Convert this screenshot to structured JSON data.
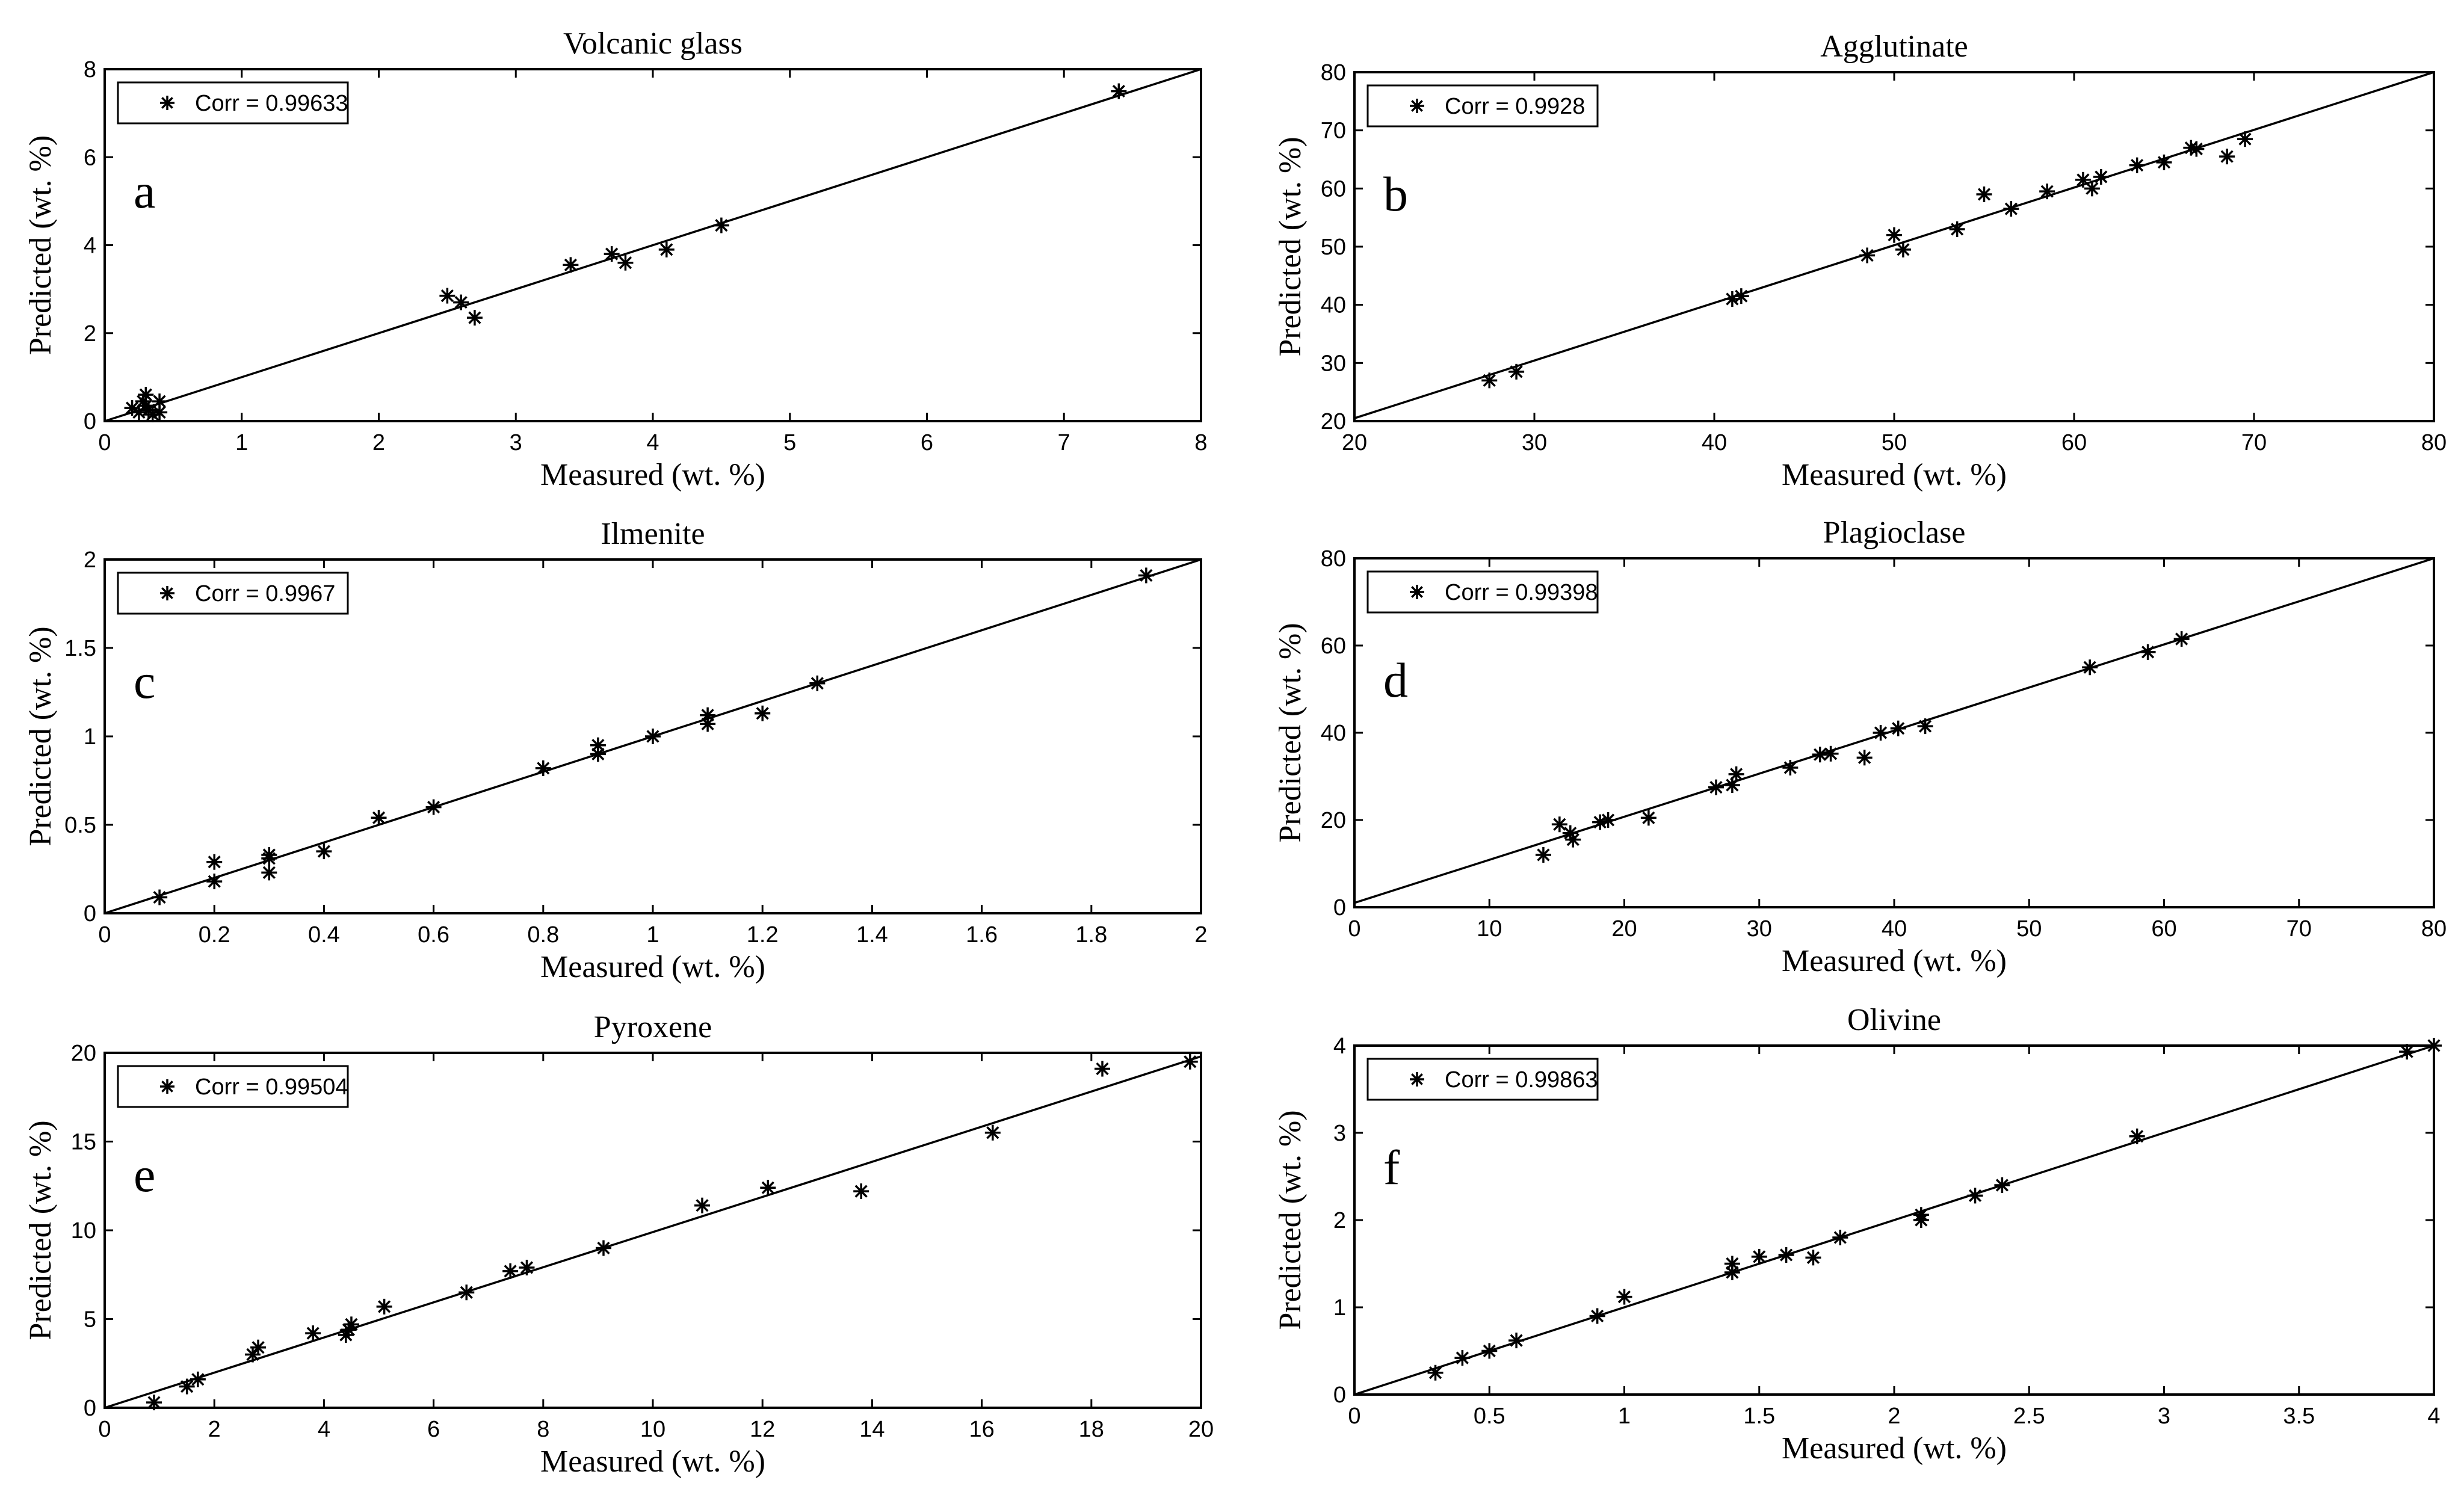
{
  "figure": {
    "colors": {
      "axes": "#000000",
      "background": "#ffffff",
      "markers": "#000000",
      "line": "#000000"
    },
    "marker": "asterisk"
  },
  "chart_data": [
    {
      "id": "volcanic-glass",
      "type": "scatter",
      "panel_label": "a",
      "title": "Volcanic glass",
      "xlabel": "Measured (wt. %)",
      "ylabel": "Predicted (wt. %)",
      "xlim": [
        0,
        8
      ],
      "ylim": [
        0,
        8
      ],
      "xticks": [
        "0",
        "1",
        "2",
        "3",
        "4",
        "5",
        "6",
        "7",
        "8"
      ],
      "yticks": [
        "0",
        "2",
        "4",
        "6",
        "8"
      ],
      "legend": "Corr = 0.99633",
      "legend_position": "top-left",
      "fit_line": [
        [
          0,
          0
        ],
        [
          8,
          8
        ]
      ],
      "points": [
        [
          0.2,
          0.3
        ],
        [
          0.25,
          0.2
        ],
        [
          0.28,
          0.45
        ],
        [
          0.3,
          0.35
        ],
        [
          0.3,
          0.6
        ],
        [
          0.32,
          0.25
        ],
        [
          0.35,
          0.15
        ],
        [
          0.4,
          0.2
        ],
        [
          0.4,
          0.45
        ],
        [
          2.5,
          2.85
        ],
        [
          2.6,
          2.7
        ],
        [
          2.7,
          2.35
        ],
        [
          3.4,
          3.55
        ],
        [
          3.7,
          3.8
        ],
        [
          3.8,
          3.6
        ],
        [
          4.1,
          3.9
        ],
        [
          4.5,
          4.45
        ],
        [
          7.4,
          7.5
        ]
      ]
    },
    {
      "id": "agglutinate",
      "type": "scatter",
      "panel_label": "b",
      "title": "Agglutinate",
      "xlabel": "Measured (wt. %)",
      "ylabel": "Predicted (wt. %)",
      "xlim": [
        20,
        80
      ],
      "ylim": [
        20,
        80
      ],
      "xticks": [
        "20",
        "30",
        "40",
        "50",
        "60",
        "70",
        "80"
      ],
      "yticks": [
        "20",
        "30",
        "40",
        "50",
        "60",
        "70",
        "80"
      ],
      "legend": "Corr = 0.9928",
      "legend_position": "top-left",
      "fit_line": [
        [
          20,
          20.5
        ],
        [
          80,
          80
        ]
      ],
      "points": [
        [
          27.5,
          27
        ],
        [
          29,
          28.5
        ],
        [
          41,
          41
        ],
        [
          41.5,
          41.5
        ],
        [
          48.5,
          48.5
        ],
        [
          50,
          52
        ],
        [
          50.5,
          49.5
        ],
        [
          53.5,
          53
        ],
        [
          55,
          59
        ],
        [
          56.5,
          56.5
        ],
        [
          58.5,
          59.5
        ],
        [
          60.5,
          61.5
        ],
        [
          61,
          60
        ],
        [
          61.5,
          62
        ],
        [
          63.5,
          64
        ],
        [
          65,
          64.5
        ],
        [
          66.5,
          67
        ],
        [
          66.8,
          66.8
        ],
        [
          68.5,
          65.5
        ],
        [
          69.5,
          68.5
        ]
      ]
    },
    {
      "id": "ilmenite",
      "type": "scatter",
      "panel_label": "c",
      "title": "Ilmenite",
      "xlabel": "Measured (wt. %)",
      "ylabel": "Predicted (wt. %)",
      "xlim": [
        0,
        2
      ],
      "ylim": [
        0,
        2
      ],
      "xticks": [
        "0",
        "0.2",
        "0.4",
        "0.6",
        "0.8",
        "1",
        "1.2",
        "1.4",
        "1.6",
        "1.8",
        "2"
      ],
      "yticks": [
        "0",
        "0.5",
        "1",
        "1.5",
        "2"
      ],
      "legend": "Corr = 0.9967",
      "legend_position": "top-left",
      "fit_line": [
        [
          0,
          0
        ],
        [
          2,
          2
        ]
      ],
      "points": [
        [
          0.1,
          0.09
        ],
        [
          0.2,
          0.18
        ],
        [
          0.2,
          0.29
        ],
        [
          0.3,
          0.23
        ],
        [
          0.3,
          0.31
        ],
        [
          0.3,
          0.33
        ],
        [
          0.4,
          0.35
        ],
        [
          0.5,
          0.54
        ],
        [
          0.6,
          0.6
        ],
        [
          0.8,
          0.82
        ],
        [
          0.9,
          0.9
        ],
        [
          0.9,
          0.95
        ],
        [
          1.0,
          1.0
        ],
        [
          1.1,
          1.07
        ],
        [
          1.1,
          1.12
        ],
        [
          1.2,
          1.13
        ],
        [
          1.3,
          1.3
        ],
        [
          1.9,
          1.91
        ]
      ]
    },
    {
      "id": "plagioclase",
      "type": "scatter",
      "panel_label": "d",
      "title": "Plagioclase",
      "xlabel": "Measured (wt. %)",
      "ylabel": "Predicted (wt. %)",
      "xlim": [
        0,
        80
      ],
      "ylim": [
        0,
        80
      ],
      "xticks": [
        "0",
        "10",
        "20",
        "30",
        "40",
        "50",
        "60",
        "70",
        "80"
      ],
      "yticks": [
        "0",
        "20",
        "40",
        "60",
        "80"
      ],
      "legend": "Corr = 0.99398",
      "legend_position": "top-left",
      "fit_line": [
        [
          0,
          1
        ],
        [
          80,
          80
        ]
      ],
      "points": [
        [
          14,
          12
        ],
        [
          15.2,
          19
        ],
        [
          16,
          17
        ],
        [
          16.2,
          15.5
        ],
        [
          18.2,
          19.5
        ],
        [
          18.8,
          20
        ],
        [
          21.8,
          20.5
        ],
        [
          26.8,
          27.5
        ],
        [
          28,
          28
        ],
        [
          28.3,
          30.5
        ],
        [
          32.3,
          32
        ],
        [
          34.5,
          35
        ],
        [
          35.3,
          35.2
        ],
        [
          37.8,
          34.3
        ],
        [
          39,
          40
        ],
        [
          40.3,
          41
        ],
        [
          42.3,
          41.5
        ],
        [
          54.5,
          55
        ],
        [
          58.8,
          58.5
        ],
        [
          61.3,
          61.5
        ]
      ]
    },
    {
      "id": "pyroxene",
      "type": "scatter",
      "panel_label": "e",
      "title": "Pyroxene",
      "xlabel": "Measured (wt. %)",
      "ylabel": "Predicted (wt. %)",
      "xlim": [
        0,
        20
      ],
      "ylim": [
        0,
        20
      ],
      "xticks": [
        "0",
        "2",
        "4",
        "6",
        "8",
        "10",
        "12",
        "14",
        "16",
        "18",
        "20"
      ],
      "yticks": [
        "0",
        "5",
        "10",
        "15",
        "20"
      ],
      "legend": "Corr = 0.99504",
      "legend_position": "top-left",
      "fit_line": [
        [
          0,
          0
        ],
        [
          20,
          19.8
        ]
      ],
      "points": [
        [
          0.9,
          0.3
        ],
        [
          1.5,
          1.2
        ],
        [
          1.7,
          1.6
        ],
        [
          2.7,
          3.0
        ],
        [
          2.8,
          3.4
        ],
        [
          3.8,
          4.2
        ],
        [
          4.4,
          4.1
        ],
        [
          4.45,
          4.4
        ],
        [
          4.5,
          4.7
        ],
        [
          5.1,
          5.7
        ],
        [
          6.6,
          6.5
        ],
        [
          7.4,
          7.7
        ],
        [
          7.7,
          7.9
        ],
        [
          9.1,
          9.0
        ],
        [
          10.9,
          11.4
        ],
        [
          12.1,
          12.4
        ],
        [
          13.8,
          12.2
        ],
        [
          16.2,
          15.5
        ],
        [
          18.2,
          19.1
        ],
        [
          19.8,
          19.5
        ]
      ]
    },
    {
      "id": "olivine",
      "type": "scatter",
      "panel_label": "f",
      "title": "Olivine",
      "xlabel": "Measured (wt. %)",
      "ylabel": "Predicted (wt. %)",
      "xlim": [
        0,
        4
      ],
      "ylim": [
        0,
        4
      ],
      "xticks": [
        "0",
        "0.5",
        "1",
        "1.5",
        "2",
        "2.5",
        "3",
        "3.5",
        "4"
      ],
      "yticks": [
        "0",
        "1",
        "2",
        "3",
        "4"
      ],
      "legend": "Corr = 0.99863",
      "legend_position": "top-left",
      "fit_line": [
        [
          0,
          0
        ],
        [
          4,
          4
        ]
      ],
      "points": [
        [
          0.3,
          0.25
        ],
        [
          0.4,
          0.42
        ],
        [
          0.5,
          0.5
        ],
        [
          0.6,
          0.62
        ],
        [
          0.9,
          0.9
        ],
        [
          1.0,
          1.12
        ],
        [
          1.4,
          1.4
        ],
        [
          1.4,
          1.5
        ],
        [
          1.5,
          1.58
        ],
        [
          1.6,
          1.6
        ],
        [
          1.7,
          1.57
        ],
        [
          1.8,
          1.8
        ],
        [
          2.1,
          2.0
        ],
        [
          2.1,
          2.06
        ],
        [
          2.3,
          2.28
        ],
        [
          2.4,
          2.4
        ],
        [
          2.9,
          2.96
        ],
        [
          3.9,
          3.93
        ],
        [
          4.0,
          4.0
        ]
      ]
    }
  ]
}
